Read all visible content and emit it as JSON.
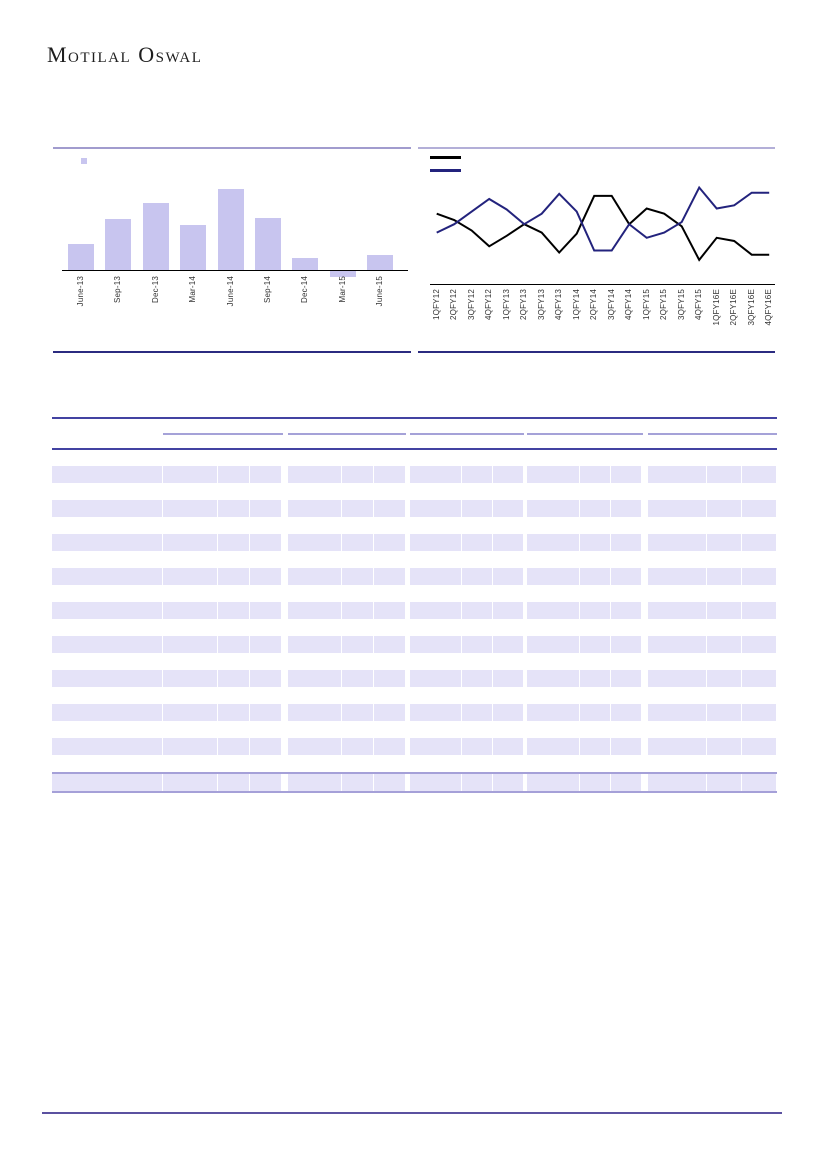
{
  "brand": {
    "logo_text": "Motilal Oswal"
  },
  "chart_data": [
    {
      "type": "bar",
      "title": "",
      "xlabel": "",
      "ylabel": "",
      "note": "y-axis unlabeled in source; values are percent of tallest bar",
      "categories": [
        "June-13",
        "Sep-13",
        "Dec-13",
        "Mar-14",
        "June-14",
        "Sep-14",
        "Dec-14",
        "Mar-15",
        "June-15"
      ],
      "values": [
        32,
        63,
        83,
        56,
        100,
        64,
        15,
        -7,
        19
      ],
      "legend": [
        {
          "name": "bar-series",
          "swatch": "square"
        }
      ],
      "colors": {
        "bar": "#c8c5ef",
        "axis": "#000000",
        "top_border": "#a19cce",
        "bottom_border": "#2b2b80"
      },
      "grid": false
    },
    {
      "type": "line",
      "title": "",
      "xlabel": "",
      "ylabel": "",
      "note": "y-axis unlabeled in source; values are percent of plot height",
      "categories": [
        "1QFY12",
        "2QFY12",
        "3QFY12",
        "4QFY12",
        "1QFY13",
        "2QFY13",
        "3QFY13",
        "4QFY13",
        "1QFY14",
        "2QFY14",
        "3QFY14",
        "4QFY14",
        "1QFY15",
        "2QFY15",
        "3QFY15",
        "4QFY15",
        "1QFY16E",
        "2QFY16E",
        "3QFY16E",
        "4QFY16E"
      ],
      "series": [
        {
          "name": "series-black",
          "color": "#000000",
          "values": [
            66,
            60,
            50,
            35,
            45,
            56,
            48,
            29,
            47,
            83,
            83,
            56,
            71,
            66,
            54,
            22,
            43,
            40,
            27,
            27
          ]
        },
        {
          "name": "series-navy",
          "color": "#23237d",
          "values": [
            48,
            56,
            68,
            80,
            70,
            56,
            66,
            85,
            68,
            31,
            31,
            56,
            43,
            48,
            58,
            91,
            71,
            74,
            86,
            86
          ]
        }
      ],
      "legend": [
        {
          "name": "series-black",
          "swatch": "line"
        },
        {
          "name": "series-navy",
          "swatch": "line"
        }
      ],
      "colors": {
        "axis": "#000000",
        "top_border": "#b3afd8",
        "bottom_border": "#2b2b80"
      },
      "grid": false,
      "legend_position": "top-left"
    }
  ],
  "table": {
    "visible_text": "",
    "column_groups": 5,
    "cells_per_group": 3,
    "striped_row_count": 9,
    "total_body_rows": 18,
    "has_summary_row": true,
    "colors": {
      "stripe": "#e5e3f8",
      "header_rule": "#4343a2",
      "group_underline": "#a5a2d8",
      "summary_border": "#a5a0d8"
    }
  },
  "footer": {
    "rule_color": "#5b51a0"
  }
}
